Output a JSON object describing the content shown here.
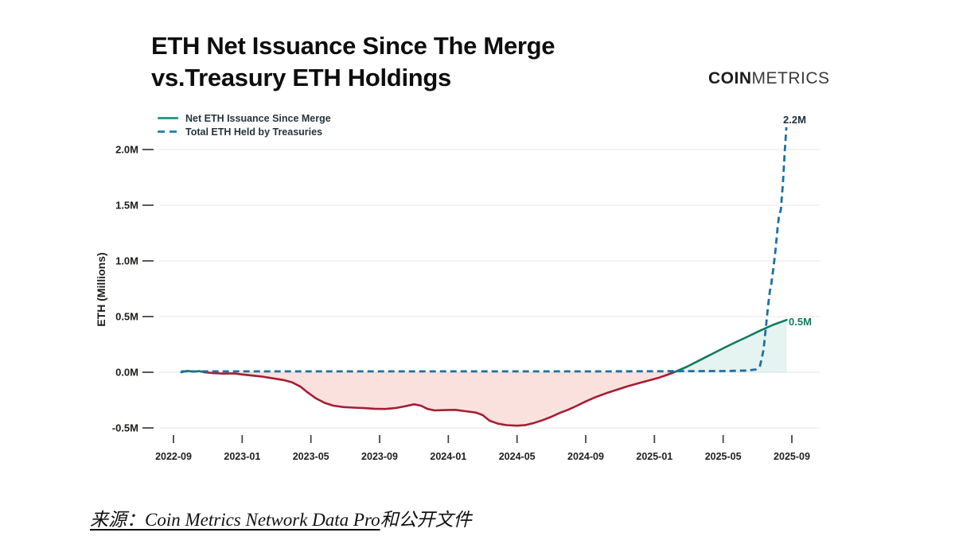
{
  "header": {
    "title_line1": "ETH Net Issuance Since The Merge",
    "title_line2": "vs.Treasury ETH Holdings",
    "logo_bold": "COIN",
    "logo_light": "METRICS"
  },
  "legend": [
    {
      "label": "Net ETH Issuance Since Merge",
      "style": "solid",
      "color": "#2a9d8f"
    },
    {
      "label": "Total ETH Held by Treasuries",
      "style": "dashed",
      "color": "#2e86ab"
    }
  ],
  "source": {
    "underlined": "来源：Coin Metrics Network Data Pro",
    "suffix": "和公开文件"
  },
  "chart_data": {
    "type": "line",
    "title": "ETH Net Issuance Since The Merge vs.Treasury ETH Holdings",
    "xlabel": "",
    "ylabel": "ETH (Millions)",
    "ylim": [
      -0.75,
      2.35
    ],
    "grid": true,
    "legend_position": "top-left",
    "x_unit": "months since 2022-09",
    "x_ticks": [
      "2022-09",
      "2023-01",
      "2023-05",
      "2023-09",
      "2024-01",
      "2024-05",
      "2024-09",
      "2025-01",
      "2025-05",
      "2025-09"
    ],
    "y_ticks": [
      {
        "label": "2.0M",
        "value": 2.0
      },
      {
        "label": "1.5M",
        "value": 1.5
      },
      {
        "label": "1.0M",
        "value": 1.0
      },
      {
        "label": "0.5M",
        "value": 0.5
      },
      {
        "label": "0.0M",
        "value": 0.0
      },
      {
        "label": "-0.5M",
        "value": -0.5
      }
    ],
    "colors": {
      "issuance_positive": "#14795f",
      "issuance_negative": "#a51e33",
      "issuance_fill_negative": "rgba(230,106,88,0.20)",
      "issuance_fill_positive": "rgba(42,157,143,0.12)",
      "treasury": "#1f6f9f",
      "grid": "#ebebeb",
      "axis_text": "#1d1d1b"
    },
    "annotations": [
      {
        "text": "2.2M",
        "series": "Total ETH Held by Treasuries",
        "value": 2.2
      },
      {
        "text": "0.5M",
        "series": "Net ETH Issuance Since Merge",
        "value": 0.47
      }
    ],
    "series": [
      {
        "name": "Net ETH Issuance Since Merge",
        "dash": false,
        "points": [
          [
            0.45,
            0.0
          ],
          [
            0.8,
            0.012
          ],
          [
            1.15,
            0.006
          ],
          [
            1.5,
            0.01
          ],
          [
            1.8,
            0.0
          ],
          [
            2.3,
            -0.008
          ],
          [
            2.9,
            -0.012
          ],
          [
            3.5,
            -0.01
          ],
          [
            4.0,
            -0.02
          ],
          [
            4.6,
            -0.03
          ],
          [
            5.2,
            -0.04
          ],
          [
            5.8,
            -0.055
          ],
          [
            6.4,
            -0.07
          ],
          [
            6.9,
            -0.09
          ],
          [
            7.4,
            -0.13
          ],
          [
            7.8,
            -0.18
          ],
          [
            8.3,
            -0.235
          ],
          [
            8.8,
            -0.275
          ],
          [
            9.3,
            -0.3
          ],
          [
            9.9,
            -0.313
          ],
          [
            10.5,
            -0.318
          ],
          [
            11.1,
            -0.322
          ],
          [
            11.7,
            -0.328
          ],
          [
            12.3,
            -0.33
          ],
          [
            12.9,
            -0.322
          ],
          [
            13.5,
            -0.305
          ],
          [
            14.0,
            -0.288
          ],
          [
            14.4,
            -0.3
          ],
          [
            14.8,
            -0.33
          ],
          [
            15.2,
            -0.343
          ],
          [
            15.8,
            -0.34
          ],
          [
            16.4,
            -0.338
          ],
          [
            17.0,
            -0.35
          ],
          [
            17.6,
            -0.362
          ],
          [
            18.0,
            -0.385
          ],
          [
            18.4,
            -0.435
          ],
          [
            18.9,
            -0.462
          ],
          [
            19.4,
            -0.475
          ],
          [
            20.0,
            -0.48
          ],
          [
            20.5,
            -0.474
          ],
          [
            21.0,
            -0.455
          ],
          [
            21.5,
            -0.43
          ],
          [
            22.0,
            -0.4
          ],
          [
            22.5,
            -0.365
          ],
          [
            23.0,
            -0.335
          ],
          [
            23.5,
            -0.3
          ],
          [
            24.0,
            -0.262
          ],
          [
            24.6,
            -0.222
          ],
          [
            25.2,
            -0.188
          ],
          [
            25.8,
            -0.158
          ],
          [
            26.4,
            -0.128
          ],
          [
            27.0,
            -0.102
          ],
          [
            27.6,
            -0.077
          ],
          [
            28.2,
            -0.052
          ],
          [
            28.7,
            -0.026
          ],
          [
            29.15,
            0.0
          ],
          [
            29.9,
            0.05
          ],
          [
            30.6,
            0.105
          ],
          [
            31.3,
            0.16
          ],
          [
            32.0,
            0.215
          ],
          [
            32.7,
            0.268
          ],
          [
            33.4,
            0.318
          ],
          [
            34.1,
            0.37
          ],
          [
            34.9,
            0.425
          ],
          [
            35.7,
            0.47
          ]
        ]
      },
      {
        "name": "Total ETH Held by Treasuries",
        "dash": true,
        "points": [
          [
            0.45,
            0.008
          ],
          [
            6,
            0.008
          ],
          [
            12,
            0.008
          ],
          [
            18,
            0.008
          ],
          [
            24,
            0.008
          ],
          [
            29,
            0.009
          ],
          [
            32,
            0.011
          ],
          [
            33.4,
            0.015
          ],
          [
            33.9,
            0.025
          ],
          [
            34.15,
            0.06
          ],
          [
            34.35,
            0.2
          ],
          [
            34.5,
            0.42
          ],
          [
            34.62,
            0.6
          ],
          [
            34.72,
            0.73
          ],
          [
            34.8,
            0.79
          ],
          [
            34.93,
            0.94
          ],
          [
            35.05,
            1.1
          ],
          [
            35.17,
            1.3
          ],
          [
            35.26,
            1.41
          ],
          [
            35.36,
            1.46
          ],
          [
            35.48,
            1.7
          ],
          [
            35.58,
            1.96
          ],
          [
            35.68,
            2.2
          ]
        ]
      }
    ]
  }
}
